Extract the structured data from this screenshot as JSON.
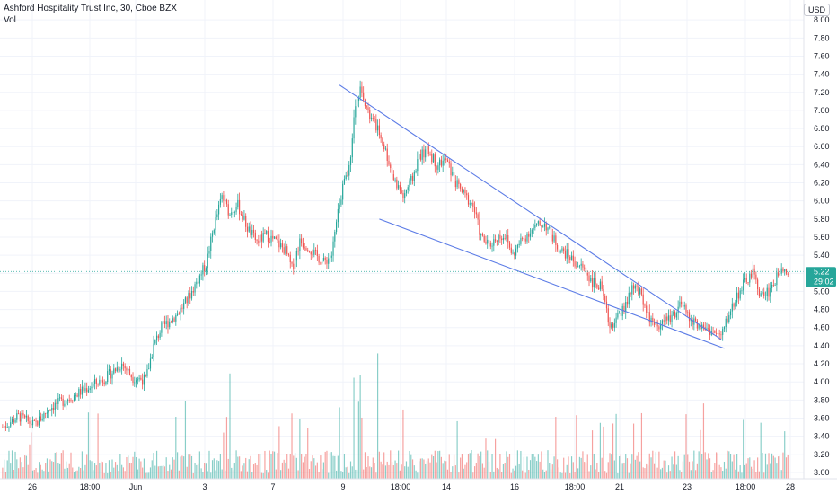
{
  "header": {
    "title": "Ashford Hospitality Trust Inc, 30, Cboe BZX",
    "indicator": "Vol",
    "currency": "USD"
  },
  "price_badge": {
    "price": "5.22",
    "countdown": "29:02"
  },
  "colors": {
    "up": "#26a69a",
    "down": "#ef5350",
    "trendline": "#5b7be6",
    "last_price_line": "#26a69a"
  },
  "chart_data": {
    "type": "candlestick",
    "y_ticks": [
      "8.00",
      "7.80",
      "7.60",
      "7.40",
      "7.20",
      "7.00",
      "6.80",
      "6.60",
      "6.40",
      "6.20",
      "6.00",
      "5.80",
      "5.60",
      "5.40",
      "5.20",
      "5.00",
      "4.80",
      "4.60",
      "4.40",
      "4.20",
      "4.00",
      "3.80",
      "3.60",
      "3.40",
      "3.20",
      "3.00"
    ],
    "ylim": [
      2.93,
      8.22
    ],
    "x_ticks": [
      "26",
      "18:00",
      "Jun",
      "3",
      "7",
      "9",
      "18:00",
      "14",
      "16",
      "18:00",
      "21",
      "23",
      "18:00",
      "28"
    ],
    "last_price": 5.22,
    "price_waypoints": [
      [
        0,
        3.5
      ],
      [
        10,
        3.62
      ],
      [
        20,
        3.52
      ],
      [
        30,
        3.72
      ],
      [
        45,
        3.85
      ],
      [
        55,
        3.95
      ],
      [
        65,
        4.05
      ],
      [
        75,
        4.2
      ],
      [
        82,
        4.05
      ],
      [
        90,
        4.02
      ],
      [
        95,
        4.4
      ],
      [
        100,
        4.6
      ],
      [
        110,
        4.75
      ],
      [
        116,
        4.9
      ],
      [
        122,
        5.1
      ],
      [
        128,
        5.3
      ],
      [
        133,
        5.72
      ],
      [
        138,
        6.05
      ],
      [
        143,
        5.85
      ],
      [
        148,
        5.95
      ],
      [
        154,
        5.7
      ],
      [
        160,
        5.55
      ],
      [
        166,
        5.62
      ],
      [
        172,
        5.55
      ],
      [
        178,
        5.45
      ],
      [
        182,
        5.25
      ],
      [
        187,
        5.55
      ],
      [
        192,
        5.5
      ],
      [
        197,
        5.4
      ],
      [
        202,
        5.32
      ],
      [
        207,
        5.4
      ],
      [
        210,
        5.75
      ],
      [
        214,
        6.15
      ],
      [
        218,
        6.35
      ],
      [
        222,
        7.1
      ],
      [
        226,
        7.25
      ],
      [
        230,
        6.95
      ],
      [
        236,
        6.8
      ],
      [
        241,
        6.55
      ],
      [
        246,
        6.25
      ],
      [
        252,
        6.05
      ],
      [
        258,
        6.25
      ],
      [
        262,
        6.5
      ],
      [
        268,
        6.55
      ],
      [
        273,
        6.4
      ],
      [
        279,
        6.45
      ],
      [
        285,
        6.2
      ],
      [
        291,
        6.05
      ],
      [
        296,
        5.95
      ],
      [
        301,
        5.6
      ],
      [
        306,
        5.5
      ],
      [
        311,
        5.6
      ],
      [
        316,
        5.62
      ],
      [
        321,
        5.4
      ],
      [
        326,
        5.55
      ],
      [
        331,
        5.65
      ],
      [
        336,
        5.72
      ],
      [
        341,
        5.75
      ],
      [
        346,
        5.6
      ],
      [
        351,
        5.45
      ],
      [
        356,
        5.4
      ],
      [
        361,
        5.3
      ],
      [
        366,
        5.25
      ],
      [
        371,
        5.1
      ],
      [
        376,
        5.05
      ],
      [
        382,
        4.62
      ],
      [
        387,
        4.7
      ],
      [
        392,
        4.85
      ],
      [
        397,
        5.05
      ],
      [
        402,
        4.95
      ],
      [
        407,
        4.7
      ],
      [
        412,
        4.62
      ],
      [
        417,
        4.68
      ],
      [
        422,
        4.75
      ],
      [
        427,
        4.85
      ],
      [
        432,
        4.7
      ],
      [
        437,
        4.62
      ],
      [
        442,
        4.6
      ],
      [
        447,
        4.55
      ],
      [
        452,
        4.5
      ],
      [
        457,
        4.75
      ],
      [
        462,
        4.95
      ],
      [
        467,
        5.1
      ],
      [
        472,
        5.2
      ],
      [
        477,
        4.95
      ],
      [
        482,
        5.0
      ],
      [
        487,
        5.15
      ],
      [
        490,
        5.3
      ],
      [
        493,
        5.22
      ]
    ],
    "trendlines": [
      {
        "from": [
          212,
          7.28
        ],
        "to": [
          452,
          4.47
        ]
      },
      {
        "from": [
          237,
          5.8
        ],
        "to": [
          454,
          4.37
        ]
      }
    ]
  }
}
